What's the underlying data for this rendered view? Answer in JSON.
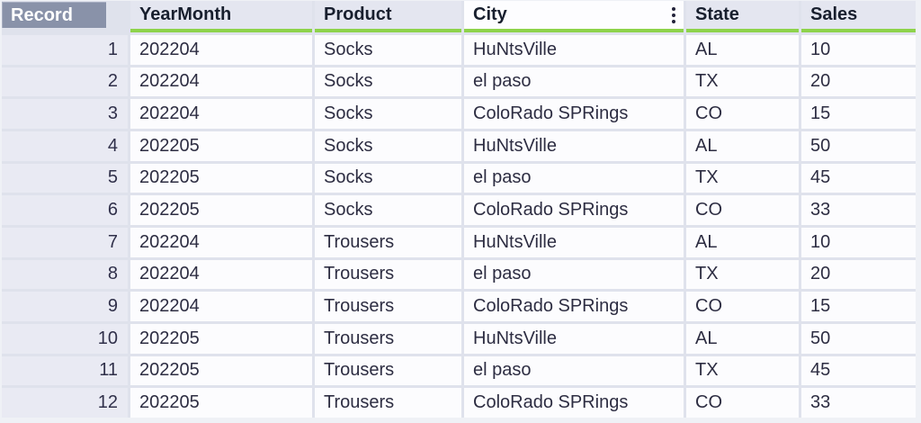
{
  "table": {
    "columns": [
      {
        "key": "record",
        "label": "Record"
      },
      {
        "key": "yearmonth",
        "label": "YearMonth"
      },
      {
        "key": "product",
        "label": "Product"
      },
      {
        "key": "city",
        "label": "City"
      },
      {
        "key": "state",
        "label": "State"
      },
      {
        "key": "sales",
        "label": "Sales"
      }
    ],
    "rows": [
      [
        "1",
        "202204",
        "Socks",
        "HuNtsVille",
        "AL",
        "10"
      ],
      [
        "2",
        "202204",
        "Socks",
        "el paso",
        "TX",
        "20"
      ],
      [
        "3",
        "202204",
        "Socks",
        "ColoRado SPRings",
        "CO",
        "15"
      ],
      [
        "4",
        "202205",
        "Socks",
        "HuNtsVille",
        "AL",
        "50"
      ],
      [
        "5",
        "202205",
        "Socks",
        "el paso",
        "TX",
        "45"
      ],
      [
        "6",
        "202205",
        "Socks",
        "ColoRado SPRings",
        "CO",
        "33"
      ],
      [
        "7",
        "202204",
        "Trousers",
        "HuNtsVille",
        "AL",
        "10"
      ],
      [
        "8",
        "202204",
        "Trousers",
        "el paso",
        "TX",
        "20"
      ],
      [
        "9",
        "202204",
        "Trousers",
        "ColoRado SPRings",
        "CO",
        "15"
      ],
      [
        "10",
        "202205",
        "Trousers",
        "HuNtsVille",
        "AL",
        "50"
      ],
      [
        "11",
        "202205",
        "Trousers",
        "el paso",
        "TX",
        "45"
      ],
      [
        "12",
        "202205",
        "Trousers",
        "ColoRado SPRings",
        "CO",
        "33"
      ]
    ]
  },
  "icons": {
    "city_column_menu": "kebab-vertical-icon"
  },
  "colors": {
    "header_underline": "#8ed34b",
    "record_header_bg": "#8992a9",
    "record_header_text": "#ffffff",
    "header_cell_bg": "#e4e6f0",
    "city_header_bg": "#fdfdff",
    "record_cell_bg": "#e9eaf3",
    "data_cell_bg": "#fcfcfe",
    "grid_lines": "#dfe2ec",
    "header_text": "#181f2e",
    "cell_text": "#2d2d42"
  }
}
